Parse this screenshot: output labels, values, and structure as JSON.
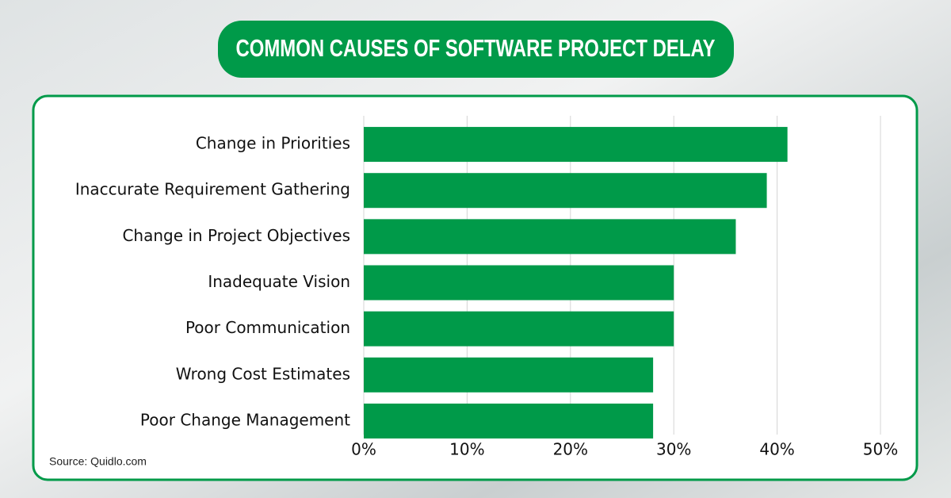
{
  "chart_data": {
    "type": "bar",
    "orientation": "horizontal",
    "title": "COMMON CAUSES OF SOFTWARE PROJECT DELAY",
    "source": "Source: Quidlo.com",
    "categories": [
      "Change in Priorities",
      "Inaccurate Requirement Gathering",
      "Change in Project Objectives",
      "Inadequate Vision",
      "Poor Communication",
      "Wrong Cost Estimates",
      "Poor Change Management"
    ],
    "values": [
      41,
      39,
      36,
      30,
      30,
      28,
      28
    ],
    "color": "#009a49",
    "xlim": [
      0,
      50
    ],
    "xticks": [
      {
        "value": 0,
        "label": "0%"
      },
      {
        "value": 10,
        "label": "10%"
      },
      {
        "value": 20,
        "label": "20%"
      },
      {
        "value": 30,
        "label": "30%"
      },
      {
        "value": 40,
        "label": "40%"
      },
      {
        "value": 50,
        "label": "50%"
      }
    ],
    "grid": true
  }
}
